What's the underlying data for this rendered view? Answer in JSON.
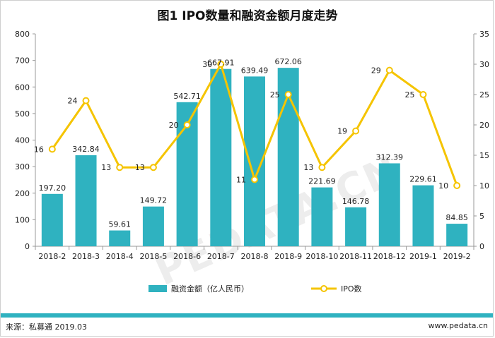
{
  "title": "图1 IPO数量和融资金额月度走势",
  "footer": {
    "source": "来源：私募通 2019.03",
    "website": "www.pedata.cn"
  },
  "watermark": "PEDATA.CN",
  "colors": {
    "bar": "#2fb2c0",
    "line": "#f5c400",
    "footer_band": "#2fb2c0",
    "axis": "#999999"
  },
  "chart_data": {
    "type": "bar",
    "categories": [
      "2018-2",
      "2018-3",
      "2018-4",
      "2018-5",
      "2018-6",
      "2018-7",
      "2018-8",
      "2018-9",
      "2018-10",
      "2018-11",
      "2018-12",
      "2019-1",
      "2019-2"
    ],
    "series": [
      {
        "name": "融资金额（亿人民币）",
        "type": "bar",
        "axis": "left",
        "values": [
          197.2,
          342.84,
          59.61,
          149.72,
          542.71,
          667.91,
          639.49,
          672.06,
          221.69,
          146.78,
          312.39,
          229.61,
          84.85
        ],
        "labels": [
          "197.20",
          "342.84",
          "59.61",
          "149.72",
          "542.71",
          "667.91",
          "639.49",
          "672.06",
          "221.69",
          "146.78",
          "312.39",
          "229.61",
          "84.85"
        ]
      },
      {
        "name": "IPO数",
        "type": "line",
        "axis": "right",
        "values": [
          16,
          24,
          13,
          13,
          20,
          30,
          11,
          25,
          13,
          19,
          29,
          25,
          10
        ],
        "labels": [
          "16",
          "24",
          "13",
          "13",
          "20",
          "30",
          "11",
          "25",
          "13",
          "19",
          "29",
          "25",
          "10"
        ]
      }
    ],
    "y_left": {
      "range": [
        0,
        800
      ],
      "ticks": [
        "0",
        "100",
        "200",
        "300",
        "400",
        "500",
        "600",
        "700",
        "800"
      ]
    },
    "y_right": {
      "range": [
        0,
        35
      ],
      "ticks": [
        "0",
        "5",
        "10",
        "15",
        "20",
        "25",
        "30",
        "35"
      ]
    },
    "grid": false,
    "legend_position": "bottom-center"
  }
}
